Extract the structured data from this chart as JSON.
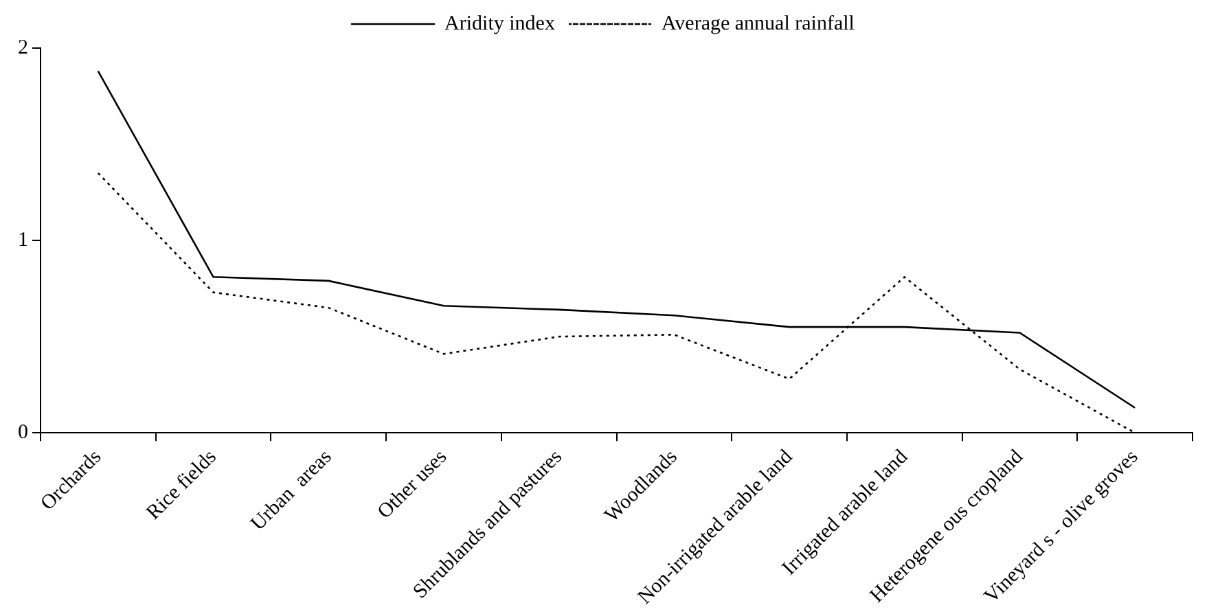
{
  "chart_data": {
    "type": "line",
    "categories": [
      "Orchards",
      "Rice fields",
      "Urban  areas",
      "Other uses",
      "Shrublands and pastures",
      "Woodlands",
      "Non-irrigated arable land",
      "Irrigated arable land",
      "Heterogene ous cropland",
      "Vineyard s - olive groves"
    ],
    "series": [
      {
        "name": "Aridity index",
        "color": "#000000",
        "line_style": "solid",
        "values": [
          1.88,
          0.81,
          0.79,
          0.66,
          0.64,
          0.61,
          0.55,
          0.55,
          0.52,
          0.13
        ]
      },
      {
        "name": "Average annual rainfall",
        "color": "#000000",
        "line_style": "dotted",
        "values": [
          1.35,
          0.73,
          0.65,
          0.41,
          0.5,
          0.51,
          0.28,
          0.81,
          0.33,
          0.0
        ]
      }
    ],
    "ylim": [
      0,
      2
    ],
    "yticks": [
      0,
      1,
      2
    ],
    "grid": false,
    "legend": "top",
    "marker": "none"
  }
}
